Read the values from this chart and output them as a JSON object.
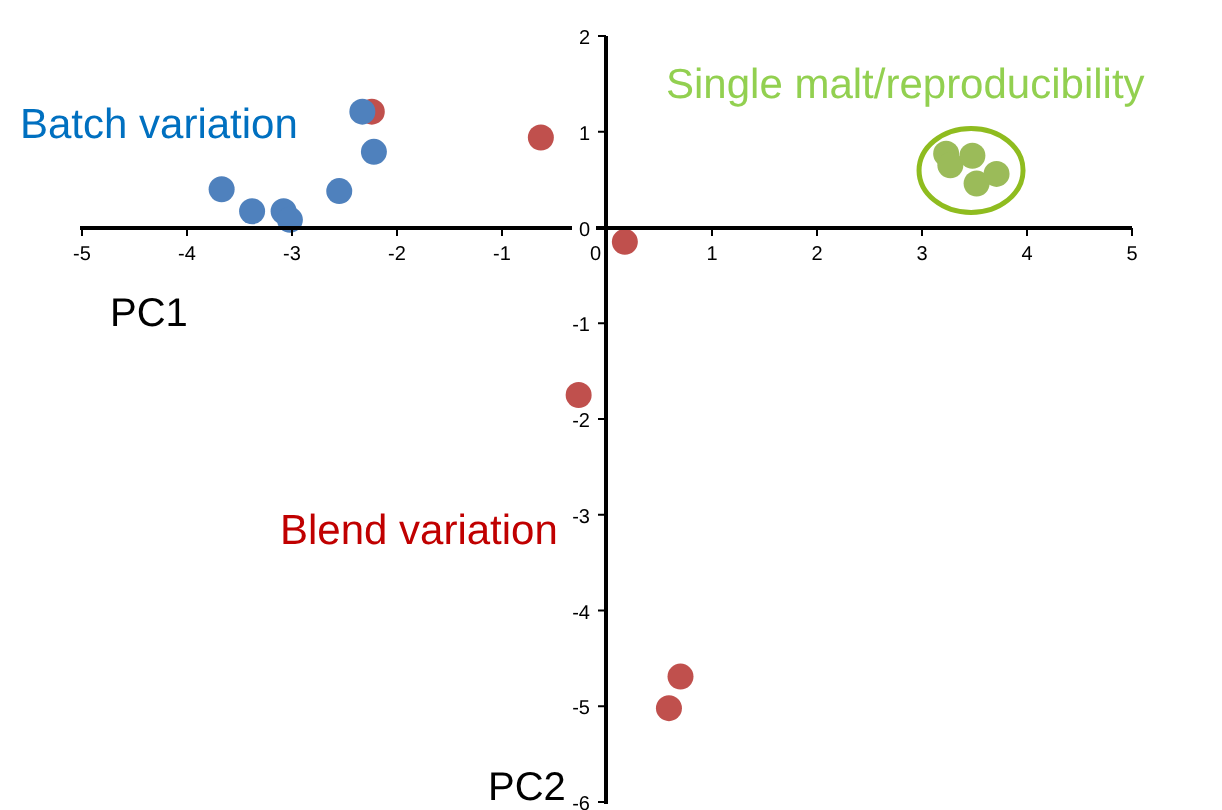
{
  "chart_data": {
    "type": "scatter",
    "xlabel": "PC1",
    "ylabel": "PC2",
    "xlim": [
      -5,
      5
    ],
    "ylim": [
      -6,
      2
    ],
    "xticks": [
      -5,
      -4,
      -3,
      -2,
      -1,
      0,
      1,
      2,
      3,
      4,
      5
    ],
    "yticks": [
      -6,
      -5,
      -4,
      -3,
      -2,
      -1,
      0,
      1,
      2
    ],
    "marker": "circle",
    "series": [
      {
        "name": "Blend variation",
        "color": "#c0504d",
        "x": [
          -2.24,
          -0.63,
          0.17,
          -0.27,
          0.7,
          0.59
        ],
        "values": [
          1.21,
          0.94,
          -0.15,
          -1.75,
          -4.69,
          -5.02
        ]
      },
      {
        "name": "Batch variation",
        "color": "#4f81bd",
        "x": [
          -3.67,
          -3.38,
          -3.08,
          -3.02,
          -2.55,
          -2.22,
          -2.33
        ],
        "values": [
          0.4,
          0.17,
          0.17,
          0.08,
          0.38,
          0.79,
          1.21
        ]
      },
      {
        "name": "Single malt/reproducibility",
        "color": "#9bbb59",
        "x": [
          3.23,
          3.27,
          3.48,
          3.52,
          3.71
        ],
        "values": [
          0.77,
          0.65,
          0.75,
          0.46,
          0.56
        ]
      }
    ]
  }
}
